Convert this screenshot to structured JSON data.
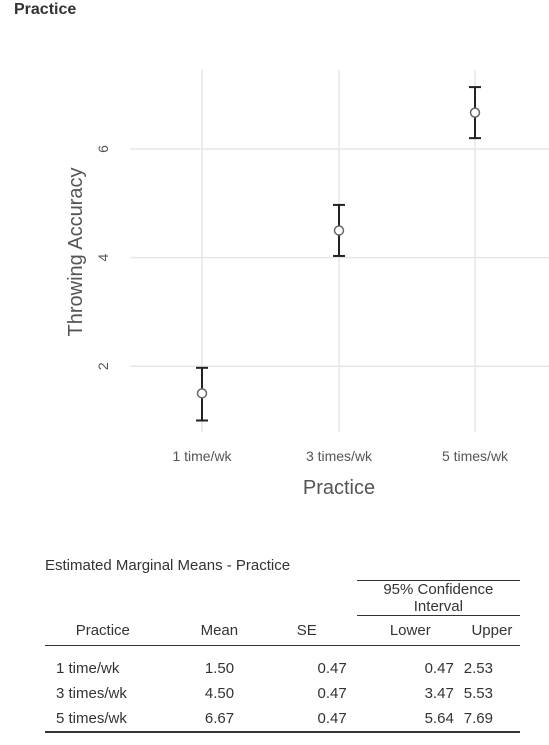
{
  "section_title": "Practice",
  "chart_data": {
    "type": "errorbar",
    "xlabel": "Practice",
    "ylabel": "Throwing Accuracy",
    "categories": [
      "1 time/wk",
      "3 times/wk",
      "5 times/wk"
    ],
    "means": [
      1.5,
      4.5,
      6.67
    ],
    "lower": [
      1.0,
      4.03,
      6.2
    ],
    "upper": [
      1.97,
      4.97,
      7.14
    ],
    "yticks": [
      2,
      4,
      6
    ],
    "ylim": [
      0.6,
      7.5
    ],
    "grid": true,
    "colors": {
      "grid": "#e6e6e6",
      "bar": "#222222",
      "marker_fill": "#ffffff",
      "marker_stroke": "#666666"
    }
  },
  "table": {
    "title": "Estimated Marginal Means - Practice",
    "ci_header": "95% Confidence Interval",
    "columns": [
      "Practice",
      "Mean",
      "SE",
      "Lower",
      "Upper"
    ],
    "rows": [
      [
        "1 time/wk",
        "1.50",
        "0.47",
        "0.47",
        "2.53"
      ],
      [
        "3 times/wk",
        "4.50",
        "0.47",
        "3.47",
        "5.53"
      ],
      [
        "5 times/wk",
        "6.67",
        "0.47",
        "5.64",
        "7.69"
      ]
    ]
  }
}
